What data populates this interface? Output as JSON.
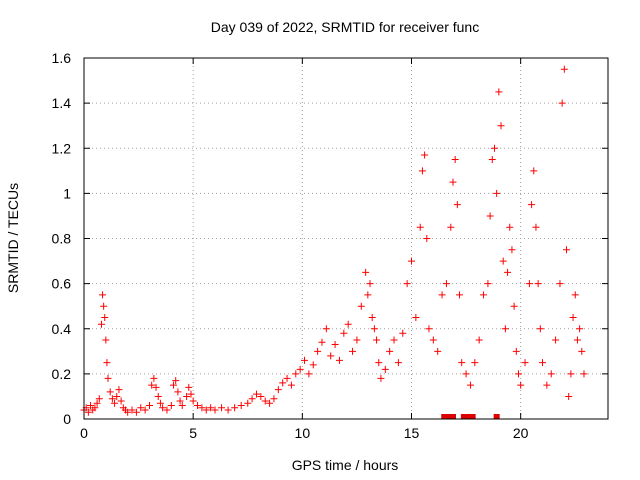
{
  "chart_data": {
    "type": "scatter",
    "title": "Day 039 of 2022, SRMTID for receiver func",
    "xlabel": "GPS time / hours",
    "ylabel": "SRMTID / TECUs",
    "xlim": [
      0,
      24
    ],
    "ylim": [
      0,
      1.6
    ],
    "xticks": [
      0,
      5,
      10,
      15,
      20
    ],
    "xtick_labels": [
      "0",
      "5",
      "10",
      "15",
      "20"
    ],
    "yticks": [
      0,
      0.2,
      0.4,
      0.6,
      0.8,
      1.0,
      1.2,
      1.4,
      1.6
    ],
    "ytick_labels": [
      "0",
      "0.2",
      "0.4",
      "0.6",
      "0.8",
      "1",
      "1.2",
      "1.4",
      "1.6"
    ],
    "grid": true,
    "marker": "plus",
    "color": "#ff0000",
    "series": [
      {
        "name": "SRMTID",
        "points": [
          [
            0.0,
            0.04
          ],
          [
            0.1,
            0.05
          ],
          [
            0.2,
            0.03
          ],
          [
            0.3,
            0.06
          ],
          [
            0.4,
            0.04
          ],
          [
            0.5,
            0.05
          ],
          [
            0.6,
            0.07
          ],
          [
            0.7,
            0.09
          ],
          [
            0.8,
            0.42
          ],
          [
            0.85,
            0.55
          ],
          [
            0.9,
            0.5
          ],
          [
            0.95,
            0.45
          ],
          [
            1.0,
            0.35
          ],
          [
            1.05,
            0.25
          ],
          [
            1.1,
            0.18
          ],
          [
            1.2,
            0.12
          ],
          [
            1.3,
            0.09
          ],
          [
            1.4,
            0.07
          ],
          [
            1.5,
            0.1
          ],
          [
            1.6,
            0.13
          ],
          [
            1.7,
            0.08
          ],
          [
            1.8,
            0.05
          ],
          [
            1.9,
            0.04
          ],
          [
            2.0,
            0.03
          ],
          [
            2.2,
            0.04
          ],
          [
            2.4,
            0.03
          ],
          [
            2.6,
            0.05
          ],
          [
            2.8,
            0.04
          ],
          [
            3.0,
            0.06
          ],
          [
            3.1,
            0.15
          ],
          [
            3.2,
            0.18
          ],
          [
            3.3,
            0.14
          ],
          [
            3.4,
            0.1
          ],
          [
            3.5,
            0.07
          ],
          [
            3.6,
            0.05
          ],
          [
            3.8,
            0.04
          ],
          [
            4.0,
            0.06
          ],
          [
            4.1,
            0.15
          ],
          [
            4.2,
            0.17
          ],
          [
            4.3,
            0.12
          ],
          [
            4.4,
            0.08
          ],
          [
            4.5,
            0.06
          ],
          [
            4.7,
            0.1
          ],
          [
            4.8,
            0.14
          ],
          [
            4.9,
            0.11
          ],
          [
            5.0,
            0.08
          ],
          [
            5.2,
            0.06
          ],
          [
            5.4,
            0.05
          ],
          [
            5.6,
            0.04
          ],
          [
            5.8,
            0.05
          ],
          [
            6.0,
            0.04
          ],
          [
            6.3,
            0.05
          ],
          [
            6.6,
            0.04
          ],
          [
            6.9,
            0.05
          ],
          [
            7.2,
            0.06
          ],
          [
            7.5,
            0.07
          ],
          [
            7.7,
            0.09
          ],
          [
            7.9,
            0.11
          ],
          [
            8.1,
            0.1
          ],
          [
            8.3,
            0.08
          ],
          [
            8.5,
            0.07
          ],
          [
            8.7,
            0.09
          ],
          [
            8.9,
            0.13
          ],
          [
            9.1,
            0.16
          ],
          [
            9.3,
            0.18
          ],
          [
            9.5,
            0.15
          ],
          [
            9.7,
            0.2
          ],
          [
            9.9,
            0.22
          ],
          [
            10.1,
            0.26
          ],
          [
            10.3,
            0.2
          ],
          [
            10.5,
            0.24
          ],
          [
            10.7,
            0.3
          ],
          [
            10.9,
            0.34
          ],
          [
            11.1,
            0.4
          ],
          [
            11.3,
            0.28
          ],
          [
            11.5,
            0.33
          ],
          [
            11.7,
            0.26
          ],
          [
            11.9,
            0.38
          ],
          [
            12.1,
            0.42
          ],
          [
            12.3,
            0.3
          ],
          [
            12.5,
            0.35
          ],
          [
            12.7,
            0.5
          ],
          [
            12.9,
            0.65
          ],
          [
            13.0,
            0.55
          ],
          [
            13.1,
            0.6
          ],
          [
            13.2,
            0.45
          ],
          [
            13.3,
            0.4
          ],
          [
            13.4,
            0.35
          ],
          [
            13.5,
            0.25
          ],
          [
            13.6,
            0.18
          ],
          [
            13.8,
            0.22
          ],
          [
            14.0,
            0.3
          ],
          [
            14.2,
            0.35
          ],
          [
            14.4,
            0.25
          ],
          [
            14.6,
            0.38
          ],
          [
            14.8,
            0.6
          ],
          [
            15.0,
            0.7
          ],
          [
            15.2,
            0.45
          ],
          [
            15.4,
            0.85
          ],
          [
            15.5,
            1.1
          ],
          [
            15.6,
            1.17
          ],
          [
            15.7,
            0.8
          ],
          [
            15.8,
            0.4
          ],
          [
            16.0,
            0.35
          ],
          [
            16.2,
            0.3
          ],
          [
            16.4,
            0.55
          ],
          [
            16.6,
            0.6
          ],
          [
            16.8,
            0.85
          ],
          [
            16.9,
            1.05
          ],
          [
            17.0,
            1.15
          ],
          [
            17.1,
            0.95
          ],
          [
            17.2,
            0.55
          ],
          [
            17.3,
            0.25
          ],
          [
            17.5,
            0.2
          ],
          [
            17.7,
            0.15
          ],
          [
            17.9,
            0.25
          ],
          [
            18.1,
            0.35
          ],
          [
            18.3,
            0.55
          ],
          [
            18.5,
            0.6
          ],
          [
            18.6,
            0.9
          ],
          [
            18.7,
            1.15
          ],
          [
            18.8,
            1.2
          ],
          [
            18.9,
            1.0
          ],
          [
            19.0,
            1.45
          ],
          [
            19.1,
            1.3
          ],
          [
            19.2,
            0.7
          ],
          [
            19.3,
            0.4
          ],
          [
            19.4,
            0.65
          ],
          [
            19.5,
            0.85
          ],
          [
            19.6,
            0.75
          ],
          [
            19.7,
            0.5
          ],
          [
            19.8,
            0.3
          ],
          [
            19.9,
            0.2
          ],
          [
            20.0,
            0.15
          ],
          [
            20.2,
            0.25
          ],
          [
            20.4,
            0.6
          ],
          [
            20.5,
            0.95
          ],
          [
            20.6,
            1.1
          ],
          [
            20.7,
            0.85
          ],
          [
            20.8,
            0.6
          ],
          [
            20.9,
            0.4
          ],
          [
            21.0,
            0.25
          ],
          [
            21.2,
            0.15
          ],
          [
            21.4,
            0.2
          ],
          [
            21.6,
            0.35
          ],
          [
            21.8,
            0.6
          ],
          [
            21.9,
            1.4
          ],
          [
            22.0,
            1.55
          ],
          [
            22.1,
            0.75
          ],
          [
            22.2,
            0.1
          ],
          [
            22.3,
            0.2
          ],
          [
            22.4,
            0.45
          ],
          [
            22.5,
            0.55
          ],
          [
            22.6,
            0.35
          ],
          [
            22.7,
            0.4
          ],
          [
            22.8,
            0.3
          ],
          [
            22.9,
            0.2
          ]
        ]
      },
      {
        "name": "zero-level",
        "points": [
          [
            16.5,
            0.0
          ],
          [
            16.7,
            0.0
          ],
          [
            16.9,
            0.0
          ],
          [
            17.4,
            0.0
          ],
          [
            17.6,
            0.0
          ],
          [
            17.8,
            0.0
          ],
          [
            18.9,
            0.0
          ]
        ]
      }
    ]
  }
}
